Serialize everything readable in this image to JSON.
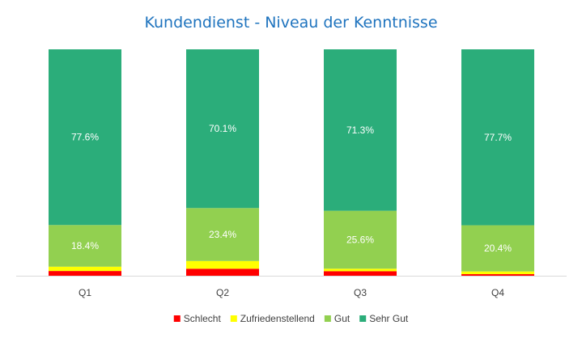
{
  "chart_data": {
    "type": "bar",
    "stacked": "percent",
    "title": "Kundendienst - Niveau der Kenntnisse",
    "categories": [
      "Q1",
      "Q2",
      "Q3",
      "Q4"
    ],
    "ylim": [
      0,
      1
    ],
    "grid": false,
    "legend": "bottom",
    "series": [
      {
        "name": "Schlecht",
        "color": "#ff0000",
        "values": [
          0.021,
          0.031,
          0.02,
          0.007
        ],
        "labels": [
          "",
          "",
          "",
          ""
        ]
      },
      {
        "name": "Zufriedenstellend",
        "color": "#ffff00",
        "values": [
          0.019,
          0.034,
          0.011,
          0.012
        ],
        "labels": [
          "",
          "",
          "",
          ""
        ]
      },
      {
        "name": "Gut",
        "color": "#92d050",
        "values": [
          0.184,
          0.234,
          0.256,
          0.204
        ],
        "labels": [
          "18.4%",
          "23.4%",
          "25.6%",
          "20.4%"
        ]
      },
      {
        "name": "Sehr Gut",
        "color": "#2bad7a",
        "values": [
          0.776,
          0.701,
          0.713,
          0.777
        ],
        "labels": [
          "77.6%",
          "70.1%",
          "71.3%",
          "77.7%"
        ]
      }
    ],
    "colors": {
      "title": "#1e73be",
      "axis": "#d9d9d9"
    }
  }
}
